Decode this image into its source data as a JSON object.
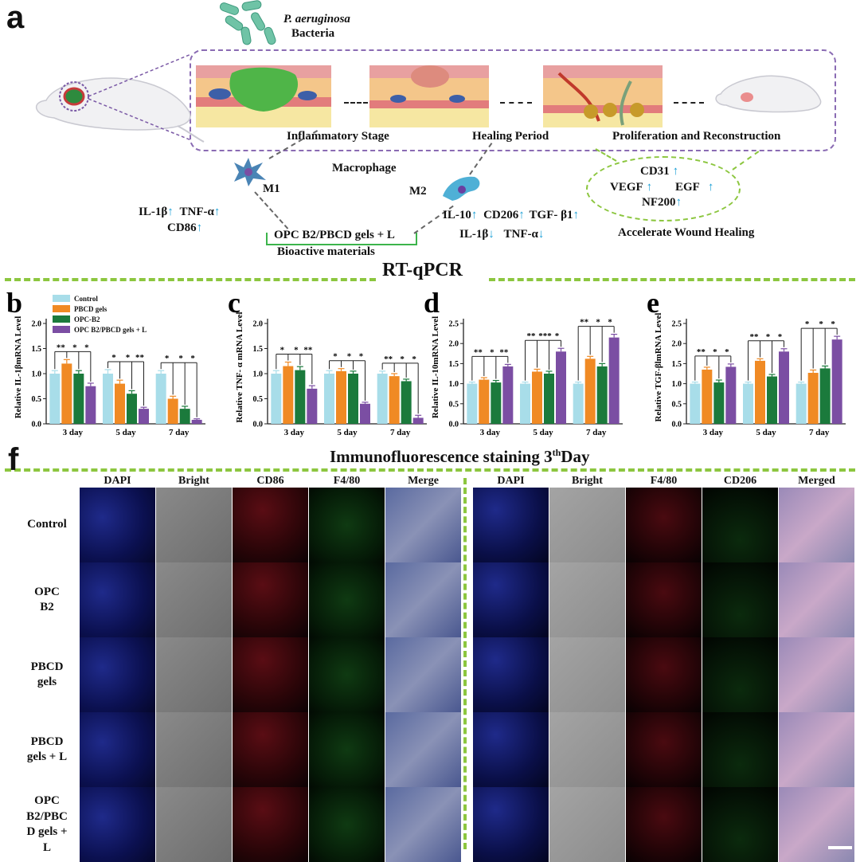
{
  "panel_a": {
    "letter": "a",
    "bacteria_name": "P. aeruginosa",
    "bacteria_word": "Bacteria",
    "stages": [
      "Inflammatory Stage",
      "Healing Period",
      "Proliferation and Reconstruction"
    ],
    "macrophage_label": "Macrophage",
    "m1_label": "M1",
    "m2_label": "M2",
    "m1_markers": [
      "IL-1β",
      "TNF-α",
      "CD86"
    ],
    "m2_up_markers": [
      "IL-10",
      "CD206",
      "TGF- β1"
    ],
    "m2_down_markers": [
      "IL-1β",
      "TNF-α"
    ],
    "material_label": "OPC B2/PBCD gels + L",
    "material_caption": "Bioactive materials",
    "healing_markers": [
      "CD31",
      "VEGF",
      "EGF",
      "NF200"
    ],
    "healing_caption": "Accelerate Wound Healing",
    "up_arrow": "↑",
    "down_arrow": "↓",
    "accent_purple": "#7b5aa6",
    "accent_green": "#8cc63f"
  },
  "rtqpcr_title": "RT-qPCR",
  "legend": [
    "Control",
    "PBCD gels",
    "OPC-B2",
    "OPC B2/PBCD gels + L"
  ],
  "chart_data": [
    {
      "letter": "b",
      "type": "bar",
      "ylabel": "Relative IL-1βmRNA Level",
      "categories": [
        "3 day",
        "5 day",
        "7 day"
      ],
      "ylim": [
        0,
        2.0
      ],
      "yticks": [
        "0.0",
        "0.5",
        "1.0",
        "1.5",
        "2.0"
      ],
      "series": [
        {
          "name": "Control",
          "values": [
            1.0,
            1.0,
            1.0
          ]
        },
        {
          "name": "PBCD gels",
          "values": [
            1.2,
            0.8,
            0.5
          ]
        },
        {
          "name": "OPC-B2",
          "values": [
            1.0,
            0.6,
            0.3
          ]
        },
        {
          "name": "OPC B2/PBCD gels + L",
          "values": [
            0.75,
            0.3,
            0.08
          ]
        }
      ],
      "errors": [
        [
          0.06,
          0.08,
          0.06,
          0.06
        ],
        [
          0.08,
          0.07,
          0.06,
          0.03
        ],
        [
          0.06,
          0.05,
          0.05,
          0.02
        ]
      ],
      "sig": [
        [
          "**",
          "*",
          "*"
        ],
        [
          "*",
          "*",
          "**"
        ],
        [
          "*",
          "*",
          "*"
        ]
      ]
    },
    {
      "letter": "c",
      "type": "bar",
      "ylabel": "Relative TNF- α mRNA Level",
      "categories": [
        "3 day",
        "5 day",
        "7 day"
      ],
      "ylim": [
        0,
        2.0
      ],
      "yticks": [
        "0.0",
        "0.5",
        "1.0",
        "1.5",
        "2.0"
      ],
      "series": [
        {
          "name": "Control",
          "values": [
            1.0,
            1.0,
            1.0
          ]
        },
        {
          "name": "PBCD gels",
          "values": [
            1.15,
            1.05,
            0.95
          ]
        },
        {
          "name": "OPC-B2",
          "values": [
            1.07,
            1.0,
            0.85
          ]
        },
        {
          "name": "OPC B2/PBCD gels + L",
          "values": [
            0.7,
            0.4,
            0.12
          ]
        }
      ],
      "errors": [
        [
          0.06,
          0.08,
          0.07,
          0.06
        ],
        [
          0.06,
          0.05,
          0.05,
          0.03
        ],
        [
          0.05,
          0.05,
          0.04,
          0.05
        ]
      ],
      "sig": [
        [
          "*",
          "*",
          "**"
        ],
        [
          "*",
          "*",
          "*"
        ],
        [
          "**",
          "*",
          "*"
        ]
      ]
    },
    {
      "letter": "d",
      "type": "bar",
      "ylabel": "Relative IL-10mRNA Level",
      "categories": [
        "3 day",
        "5 day",
        "7 day"
      ],
      "ylim": [
        0,
        2.5
      ],
      "yticks": [
        "0.0",
        "0.5",
        "1.0",
        "1.5",
        "2.0",
        "2.5"
      ],
      "series": [
        {
          "name": "Control",
          "values": [
            1.0,
            1.0,
            1.0
          ]
        },
        {
          "name": "PBCD gels",
          "values": [
            1.1,
            1.3,
            1.62
          ]
        },
        {
          "name": "OPC-B2",
          "values": [
            1.03,
            1.25,
            1.43
          ]
        },
        {
          "name": "OPC B2/PBCD gels + L",
          "values": [
            1.43,
            1.8,
            2.15
          ]
        }
      ],
      "errors": [
        [
          0.04,
          0.05,
          0.05,
          0.05
        ],
        [
          0.04,
          0.06,
          0.06,
          0.08
        ],
        [
          0.04,
          0.06,
          0.07,
          0.08
        ]
      ],
      "sig": [
        [
          "**",
          "*",
          "**"
        ],
        [
          "**",
          "***",
          "*"
        ],
        [
          "**",
          "*",
          "*"
        ]
      ]
    },
    {
      "letter": "e",
      "type": "bar",
      "ylabel": "Relative TGF-βlmRNA Level",
      "categories": [
        "3 day",
        "5 day",
        "7 day"
      ],
      "ylim": [
        0,
        2.5
      ],
      "yticks": [
        "0.0",
        "0.5",
        "1.0",
        "1.5",
        "2.0",
        "2.5"
      ],
      "series": [
        {
          "name": "Control",
          "values": [
            1.0,
            1.0,
            1.0
          ]
        },
        {
          "name": "PBCD gels",
          "values": [
            1.35,
            1.57,
            1.27
          ]
        },
        {
          "name": "OPC-B2",
          "values": [
            1.03,
            1.18,
            1.38
          ]
        },
        {
          "name": "OPC B2/PBCD gels + L",
          "values": [
            1.42,
            1.8,
            2.1
          ]
        }
      ],
      "errors": [
        [
          0.04,
          0.06,
          0.06,
          0.07
        ],
        [
          0.04,
          0.05,
          0.05,
          0.07
        ],
        [
          0.04,
          0.07,
          0.06,
          0.08
        ]
      ],
      "sig": [
        [
          "**",
          "*",
          "*"
        ],
        [
          "**",
          "*",
          "*"
        ],
        [
          "*",
          "*",
          "*"
        ]
      ]
    }
  ],
  "bar_colors": [
    "#a8dde9",
    "#f08a24",
    "#1b7a3c",
    "#7b4ea3"
  ],
  "panel_f": {
    "letter": "f",
    "title_main": "Immunofluorescence staining 3",
    "title_sup": "th",
    "title_end": "Day",
    "left_headers": [
      "DAPI",
      "Bright",
      "CD86",
      "F4/80",
      "Merge"
    ],
    "right_headers": [
      "DAPI",
      "Bright",
      "F4/80",
      "CD206",
      "Merged"
    ],
    "row_labels": [
      "Control",
      "OPC\nB2",
      "PBCD\ngels",
      "PBCD\ngels + L",
      "OPC\nB2/PBC\nD gels +\nL"
    ]
  }
}
